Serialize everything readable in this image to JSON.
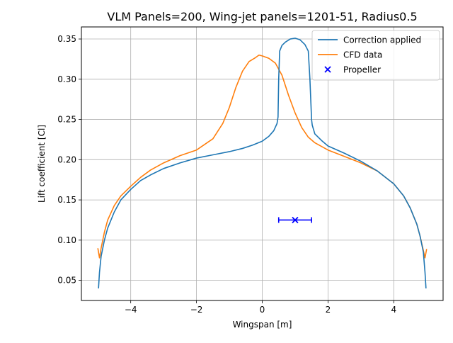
{
  "chart_data": {
    "type": "line",
    "title": "VLM Panels=200, Wing-jet panels=1201-51, Radius0.5",
    "xlabel": "Wingspan [m]",
    "ylabel": "Lift coefficient [Cl]",
    "xlim": [
      -5.5,
      5.5
    ],
    "ylim": [
      0.025,
      0.365
    ],
    "xticks": [
      -4,
      -2,
      0,
      2,
      4
    ],
    "xtick_labels": [
      "−4",
      "−2",
      "0",
      "2",
      "4"
    ],
    "yticks": [
      0.05,
      0.1,
      0.15,
      0.2,
      0.25,
      0.3,
      0.35
    ],
    "ytick_labels": [
      "0.05",
      "0.10",
      "0.15",
      "0.20",
      "0.25",
      "0.30",
      "0.35"
    ],
    "grid": true,
    "legend_position": "upper-right",
    "series": [
      {
        "name": "Correction applied",
        "color": "#1f77b4",
        "x": [
          -4.98,
          -4.95,
          -4.9,
          -4.8,
          -4.7,
          -4.5,
          -4.3,
          -4.0,
          -3.7,
          -3.4,
          -3.0,
          -2.5,
          -2.0,
          -1.5,
          -1.0,
          -0.6,
          -0.3,
          0.0,
          0.2,
          0.35,
          0.45,
          0.48,
          0.5,
          0.53,
          0.6,
          0.7,
          0.85,
          1.0,
          1.15,
          1.3,
          1.4,
          1.45,
          1.48,
          1.5,
          1.52,
          1.6,
          1.8,
          2.0,
          2.5,
          3.0,
          3.5,
          4.0,
          4.3,
          4.5,
          4.7,
          4.8,
          4.9,
          4.95,
          4.98
        ],
        "y": [
          0.04,
          0.06,
          0.08,
          0.1,
          0.115,
          0.135,
          0.15,
          0.163,
          0.174,
          0.181,
          0.189,
          0.196,
          0.202,
          0.206,
          0.21,
          0.214,
          0.218,
          0.223,
          0.229,
          0.236,
          0.245,
          0.253,
          0.3,
          0.335,
          0.342,
          0.346,
          0.35,
          0.351,
          0.349,
          0.343,
          0.335,
          0.3,
          0.27,
          0.25,
          0.243,
          0.232,
          0.224,
          0.217,
          0.208,
          0.198,
          0.186,
          0.17,
          0.155,
          0.14,
          0.12,
          0.105,
          0.085,
          0.06,
          0.04
        ]
      },
      {
        "name": "CFD data",
        "color": "#ff7f0e",
        "x": [
          -5.0,
          -4.95,
          -4.9,
          -4.8,
          -4.7,
          -4.5,
          -4.3,
          -4.0,
          -3.7,
          -3.4,
          -3.0,
          -2.5,
          -2.0,
          -1.5,
          -1.2,
          -1.0,
          -0.8,
          -0.6,
          -0.4,
          -0.2,
          -0.1,
          0.0,
          0.2,
          0.4,
          0.6,
          0.8,
          1.0,
          1.2,
          1.4,
          1.6,
          2.0,
          2.5,
          3.0,
          3.5,
          4.0,
          4.3,
          4.5,
          4.7,
          4.8,
          4.9,
          4.95,
          5.0
        ],
        "y": [
          0.09,
          0.078,
          0.09,
          0.11,
          0.125,
          0.143,
          0.155,
          0.167,
          0.178,
          0.187,
          0.196,
          0.205,
          0.212,
          0.226,
          0.245,
          0.265,
          0.29,
          0.31,
          0.322,
          0.327,
          0.33,
          0.329,
          0.326,
          0.32,
          0.305,
          0.28,
          0.258,
          0.24,
          0.228,
          0.221,
          0.212,
          0.204,
          0.196,
          0.186,
          0.17,
          0.155,
          0.14,
          0.12,
          0.105,
          0.087,
          0.078,
          0.089
        ]
      }
    ],
    "propeller": {
      "name": "Propeller",
      "color": "#0000ff",
      "x": 1.0,
      "y": 0.125,
      "x_range": [
        0.5,
        1.5
      ]
    }
  }
}
